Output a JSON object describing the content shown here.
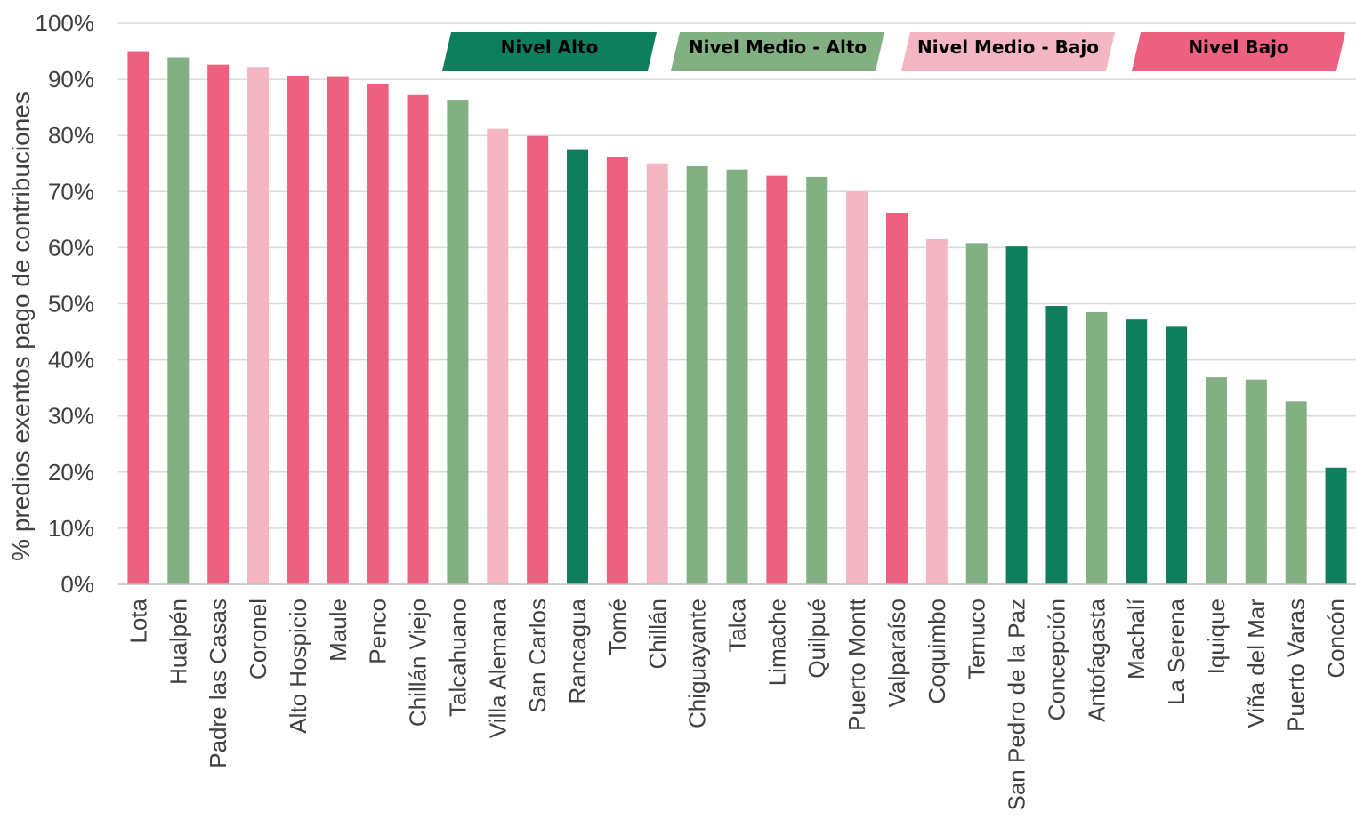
{
  "chart_data": {
    "type": "bar",
    "title": "",
    "xlabel": "",
    "ylabel": "% predios exentos pago de contribuciones",
    "ylim": [
      0,
      100
    ],
    "yticks": [
      0,
      10,
      20,
      30,
      40,
      50,
      60,
      70,
      80,
      90,
      100
    ],
    "ytick_labels": [
      "0%",
      "10%",
      "20%",
      "30%",
      "40%",
      "50%",
      "60%",
      "70%",
      "80%",
      "90%",
      "100%"
    ],
    "grid": true,
    "legend_position": "top",
    "levels": [
      {
        "key": "alto",
        "label": "Nivel Alto",
        "color": "#0f7e5c",
        "text_color": "#000000"
      },
      {
        "key": "medio_alto",
        "label": "Nivel Medio - Alto",
        "color": "#82b082",
        "text_color": "#000000"
      },
      {
        "key": "medio_bajo",
        "label": "Nivel Medio - Bajo",
        "color": "#f4b6c3",
        "text_color": "#000000"
      },
      {
        "key": "bajo",
        "label": "Nivel Bajo",
        "color": "#ec6080",
        "text_color": "#000000"
      }
    ],
    "categories": [
      "Lota",
      "Hualpén",
      "Padre las Casas",
      "Coronel",
      "Alto Hospicio",
      "Maule",
      "Penco",
      "Chillán Viejo",
      "Talcahuano",
      "Villa Alemana",
      "San Carlos",
      "Rancagua",
      "Tomé",
      "Chillán",
      "Chiguayante",
      "Talca",
      "Limache",
      "Quilpué",
      "Puerto Montt",
      "Valparaíso",
      "Coquimbo",
      "Temuco",
      "San Pedro de la Paz",
      "Concepción",
      "Antofagasta",
      "Machalí",
      "La Serena",
      "Iquique",
      "Viña del Mar",
      "Puerto Varas",
      "Concón"
    ],
    "values": [
      95.0,
      93.9,
      92.6,
      92.2,
      90.6,
      90.4,
      89.1,
      87.2,
      86.2,
      81.2,
      79.9,
      77.4,
      76.1,
      75.0,
      74.5,
      73.9,
      72.8,
      72.6,
      70.0,
      66.2,
      61.5,
      60.8,
      60.2,
      49.6,
      48.5,
      47.2,
      45.9,
      36.9,
      36.5,
      32.6,
      20.8
    ],
    "bar_levels": [
      "bajo",
      "medio_alto",
      "bajo",
      "medio_bajo",
      "bajo",
      "bajo",
      "bajo",
      "bajo",
      "medio_alto",
      "medio_bajo",
      "bajo",
      "alto",
      "bajo",
      "medio_bajo",
      "medio_alto",
      "medio_alto",
      "bajo",
      "medio_alto",
      "medio_bajo",
      "bajo",
      "medio_bajo",
      "medio_alto",
      "alto",
      "alto",
      "medio_alto",
      "alto",
      "alto",
      "medio_alto",
      "medio_alto",
      "medio_alto",
      "alto"
    ]
  }
}
